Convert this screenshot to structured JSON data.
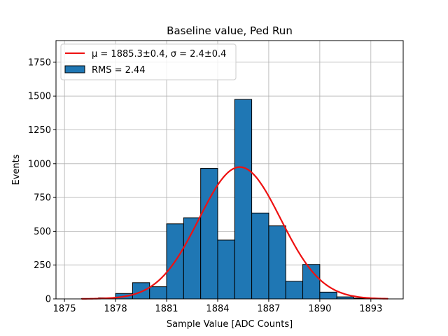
{
  "chart_data": {
    "type": "bar",
    "title": "Baseline value, Ped Run",
    "xlabel": "Sample Value [ADC Counts]",
    "ylabel": "Events",
    "xlim": [
      1874.5,
      1894.9
    ],
    "ylim": [
      0,
      1910
    ],
    "grid": true,
    "x_ticks": [
      1875,
      1878,
      1881,
      1884,
      1887,
      1890,
      1893
    ],
    "y_ticks": [
      0,
      250,
      500,
      750,
      1000,
      1250,
      1500,
      1750
    ],
    "histogram": {
      "name": "RMS = 2.44",
      "color": "#1f77b4",
      "bin_width": 1,
      "bin_left_edges": [
        1876,
        1877,
        1878,
        1879,
        1880,
        1881,
        1882,
        1883,
        1884,
        1885,
        1886,
        1887,
        1888,
        1889,
        1890,
        1891,
        1892,
        1893
      ],
      "values": [
        2,
        8,
        40,
        120,
        90,
        555,
        600,
        965,
        435,
        1475,
        635,
        540,
        130,
        255,
        50,
        15,
        5,
        2
      ]
    },
    "fit": {
      "name": "μ = 1885.3±0.4, σ = 2.4±0.4",
      "color": "#ee1111",
      "type": "gaussian",
      "mu": 1885.3,
      "sigma": 2.4,
      "amplitude": 975,
      "x_range": [
        1876,
        1894
      ]
    },
    "legend": {
      "placement": "top-left",
      "entries": [
        {
          "label": "μ = 1885.3±0.4, σ = 2.4±0.4",
          "kind": "line"
        },
        {
          "label": "RMS = 2.44",
          "kind": "patch"
        }
      ]
    }
  }
}
